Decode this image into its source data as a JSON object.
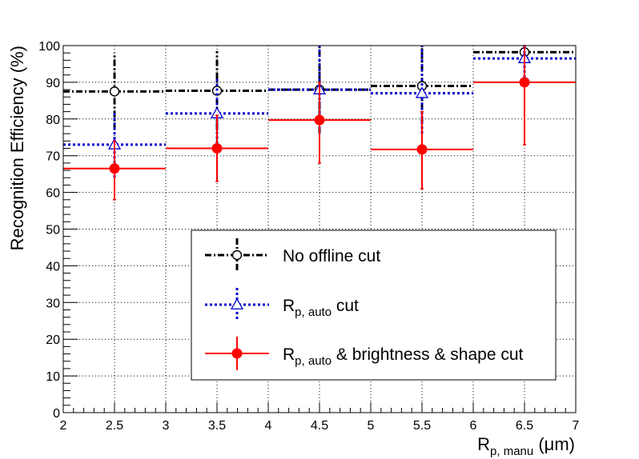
{
  "chart_data": {
    "type": "scatter",
    "xlabel": {
      "main": "R",
      "sub": "p, manu",
      "unit": " (μm)"
    },
    "ylabel": "Recognition Efficiency (%)",
    "xlim": [
      2,
      7
    ],
    "ylim": [
      0,
      100
    ],
    "grid": true,
    "legend_position": "lower-center",
    "x_ticks": [
      2,
      2.5,
      3,
      3.5,
      4,
      4.5,
      5,
      5.5,
      6,
      6.5,
      7
    ],
    "x_tick_labels": [
      "2",
      "2.5",
      "3",
      "3.5",
      "4",
      "4.5",
      "5",
      "5.5",
      "6",
      "6.5",
      "7"
    ],
    "y_ticks": [
      0,
      10,
      20,
      30,
      40,
      50,
      60,
      70,
      80,
      90,
      100
    ],
    "y_tick_labels": [
      "0",
      "10",
      "20",
      "30",
      "40",
      "50",
      "60",
      "70",
      "80",
      "90",
      "100"
    ],
    "series": [
      {
        "name": "No offline cut",
        "legend_main": "No offline cut",
        "legend_sub": "",
        "legend_rest": "",
        "color": "#000000",
        "dash": "dashdot",
        "marker": "open-circle",
        "points": [
          {
            "x": 2.5,
            "y": 87.5,
            "xerr": 0.5,
            "ylo": 77,
            "yhi": 98
          },
          {
            "x": 3.5,
            "y": 87.7,
            "xerr": 0.5,
            "ylo": 77,
            "yhi": 98.5
          },
          {
            "x": 4.5,
            "y": 88.0,
            "xerr": 0.5,
            "ylo": 76,
            "yhi": 100
          },
          {
            "x": 5.5,
            "y": 89.0,
            "xerr": 0.5,
            "ylo": 79,
            "yhi": 100
          },
          {
            "x": 6.5,
            "y": 98.2,
            "xerr": 0.5,
            "ylo": 96,
            "yhi": 100
          }
        ]
      },
      {
        "name": "R p, auto cut",
        "legend_main": "R",
        "legend_sub": "p, auto",
        "legend_rest": " cut",
        "color": "#0000cc",
        "dash": "dotted",
        "marker": "open-triangle",
        "points": [
          {
            "x": 2.5,
            "y": 73.0,
            "xerr": 0.5,
            "ylo": 64,
            "yhi": 82
          },
          {
            "x": 3.5,
            "y": 81.5,
            "xerr": 0.5,
            "ylo": 72,
            "yhi": 91
          },
          {
            "x": 4.5,
            "y": 88.0,
            "xerr": 0.5,
            "ylo": 76,
            "yhi": 100
          },
          {
            "x": 5.5,
            "y": 87.0,
            "xerr": 0.5,
            "ylo": 76,
            "yhi": 100
          },
          {
            "x": 6.5,
            "y": 96.5,
            "xerr": 0.5,
            "ylo": 90,
            "yhi": 100
          }
        ]
      },
      {
        "name": "R p, auto & brightness & shape cut",
        "legend_main": "R",
        "legend_sub": "p, auto",
        "legend_rest": " & brightness & shape cut",
        "color": "#ff0000",
        "dash": "solid",
        "marker": "filled-circle",
        "points": [
          {
            "x": 2.5,
            "y": 66.5,
            "xerr": 0.5,
            "ylo": 58,
            "yhi": 74
          },
          {
            "x": 3.5,
            "y": 72.0,
            "xerr": 0.5,
            "ylo": 63,
            "yhi": 81
          },
          {
            "x": 4.5,
            "y": 79.7,
            "xerr": 0.5,
            "ylo": 68,
            "yhi": 90
          },
          {
            "x": 5.5,
            "y": 71.7,
            "xerr": 0.5,
            "ylo": 61,
            "yhi": 82
          },
          {
            "x": 6.5,
            "y": 90.0,
            "xerr": 0.5,
            "ylo": 73,
            "yhi": 100
          }
        ]
      }
    ]
  }
}
